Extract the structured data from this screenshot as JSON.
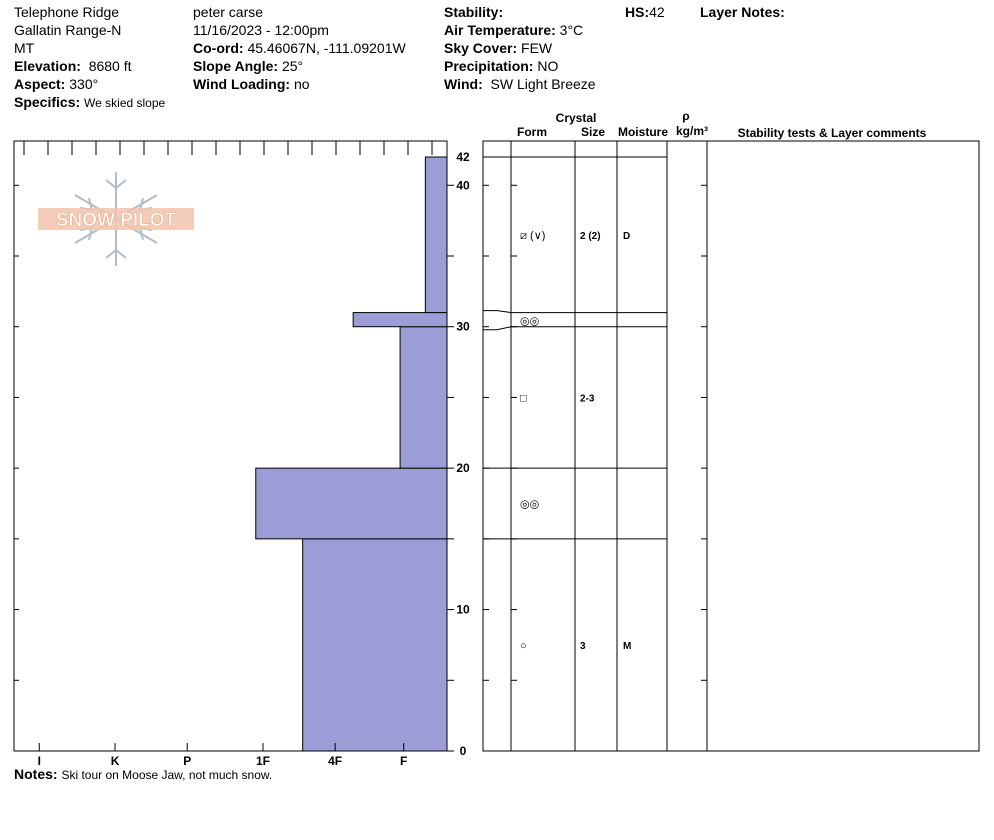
{
  "header": {
    "location": "Telephone Ridge",
    "range": "Gallatin Range-N",
    "state": "MT",
    "elevation_label": "Elevation:",
    "elevation": "8680 ft",
    "aspect_label": "Aspect:",
    "aspect": "330°",
    "specifics_label": "Specifics:",
    "specifics": "We skied slope",
    "observer": "peter carse",
    "datetime": "11/16/2023 - 12:00pm",
    "coord_label": "Co-ord:",
    "coord": "45.46067N, -111.09201W",
    "slope_label": "Slope Angle:",
    "slope": "25°",
    "wind_loading_label": "Wind Loading:",
    "wind_loading": "no",
    "stability_label": "Stability:",
    "stability": "",
    "air_temp_label": "Air Temperature:",
    "air_temp": "3°C",
    "sky_label": "Sky Cover:",
    "sky": "FEW",
    "precip_label": "Precipitation:",
    "precip": "NO",
    "wind_label": "Wind:",
    "wind": "SW Light Breeze",
    "hs_label": "HS:",
    "hs": "42",
    "layer_notes_label": "Layer Notes:"
  },
  "notes_label": "Notes:",
  "notes": "Ski tour on Moose Jaw, not much snow.",
  "logo_text": "SNOW PILOT",
  "colors": {
    "hardness_fill": "#9c9cd6",
    "logo": "#f0b8a0",
    "snowflake": "#b0bcc8"
  },
  "columns": {
    "crystal": "Crystal",
    "form": "Form",
    "size": "Size",
    "moisture": "Moisture",
    "rho": "ρ",
    "density": "kg/m³",
    "stability": "Stability tests & Layer comments"
  },
  "chart_data": {
    "type": "bar",
    "title": "",
    "ylim": [
      0,
      42
    ],
    "y_ticks": [
      0,
      10,
      20,
      30,
      40,
      42
    ],
    "hardness_scale": [
      "I",
      "K",
      "P",
      "1F",
      "4F",
      "F"
    ],
    "hardness_positions": {
      "I": 0.35,
      "K": 1.4,
      "P": 2.4,
      "1F": 3.45,
      "4F": 4.45,
      "F": 5.4
    },
    "hardness_xlim": [
      0,
      6
    ],
    "layers": [
      {
        "bottom": 0,
        "top": 15,
        "hardness_level": 4.0,
        "form": "○",
        "size": "3",
        "moisture": "M"
      },
      {
        "bottom": 15,
        "top": 20,
        "hardness_level": 3.35,
        "form": "◎◎",
        "size": "",
        "moisture": ""
      },
      {
        "bottom": 20,
        "top": 30,
        "hardness_level": 5.35,
        "form": "□",
        "size": "2-3",
        "moisture": ""
      },
      {
        "bottom": 30,
        "top": 31,
        "hardness_level": 4.7,
        "form": "◎◎",
        "size": "",
        "moisture": ""
      },
      {
        "bottom": 31,
        "top": 42,
        "hardness_level": 5.7,
        "form": "⧄ (∨)",
        "size": "2 (2)",
        "moisture": "D"
      }
    ]
  }
}
